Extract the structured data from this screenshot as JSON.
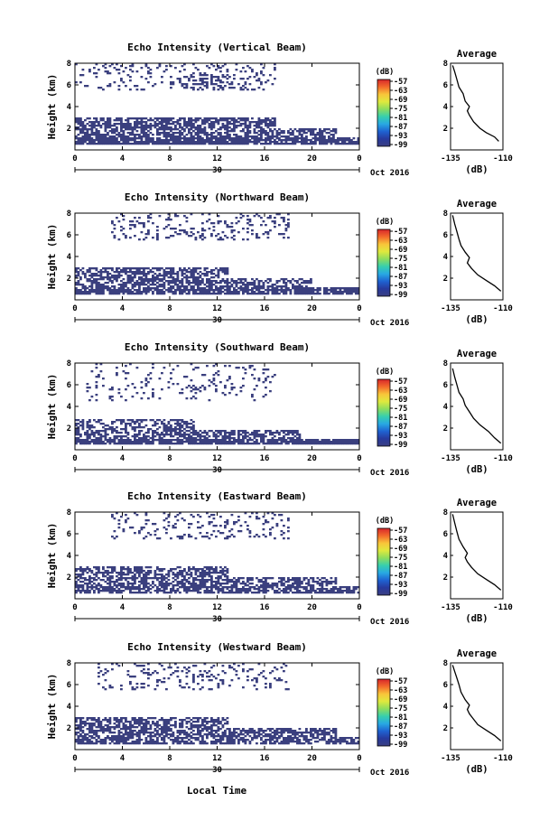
{
  "figure": {
    "bottom_xlabel": "Local Time",
    "date_label": "Oct 2016",
    "day_label": "30",
    "colorbar_unit": "(dB)",
    "colorbar_ticks": [
      "-57",
      "-63",
      "-69",
      "-75",
      "-81",
      "-87",
      "-93",
      "-99"
    ],
    "colorbar_colors": [
      "#d7262b",
      "#f36b2b",
      "#f8c53a",
      "#dfe93e",
      "#8ddd5e",
      "#36cfae",
      "#28a8e3",
      "#1f62d1",
      "#273a9d",
      "#3b3f82"
    ],
    "echo_color": "#3a3f7e",
    "avg_title": "Average",
    "avg_xlabel": "(dB)"
  },
  "chart_data": [
    {
      "type": "heatmap",
      "title": "Echo Intensity (Vertical Beam)",
      "ylabel": "Height (km)",
      "xlim": [
        0,
        24
      ],
      "ylim": [
        0,
        8
      ],
      "xticks": [
        "0",
        "4",
        "8",
        "12",
        "16",
        "20",
        "0"
      ],
      "yticks": [
        "2",
        "4",
        "6",
        "8"
      ],
      "seed": 11,
      "regions": [
        [
          0,
          24,
          0.5,
          1.2,
          0.85
        ],
        [
          0,
          22,
          1.2,
          2.0,
          0.6
        ],
        [
          0,
          17,
          2.0,
          3.0,
          0.7
        ],
        [
          0,
          17,
          5.5,
          8.0,
          0.15
        ],
        [
          8,
          14,
          5.5,
          7.0,
          0.3
        ]
      ],
      "avg": {
        "xlim": [
          -135,
          -110
        ],
        "xticks": [
          "-135",
          "-110"
        ],
        "ylim": [
          0,
          8
        ],
        "yticks": [
          "2",
          "4",
          "6",
          "8"
        ],
        "x": [
          -112,
          -114,
          -118,
          -121,
          -124,
          -126,
          -127,
          -126,
          -128,
          -129,
          -131,
          -132,
          -133,
          -134
        ],
        "y": [
          0.8,
          1.2,
          1.6,
          2.0,
          2.6,
          3.2,
          3.6,
          4.0,
          4.5,
          5.2,
          5.8,
          6.5,
          7.2,
          7.8
        ]
      }
    },
    {
      "type": "heatmap",
      "title": "Echo Intensity (Northward Beam)",
      "ylabel": "Height (km)",
      "xlim": [
        0,
        24
      ],
      "ylim": [
        0,
        8
      ],
      "xticks": [
        "0",
        "4",
        "8",
        "12",
        "16",
        "20",
        "0"
      ],
      "yticks": [
        "2",
        "4",
        "6",
        "8"
      ],
      "seed": 23,
      "regions": [
        [
          0,
          24,
          0.5,
          1.1,
          0.8
        ],
        [
          0,
          20,
          1.1,
          2.0,
          0.6
        ],
        [
          0,
          13,
          2.0,
          3.0,
          0.6
        ],
        [
          3,
          18,
          5.5,
          8.0,
          0.15
        ]
      ],
      "avg": {
        "xlim": [
          -135,
          -110
        ],
        "xticks": [
          "-135",
          "-110"
        ],
        "ylim": [
          0,
          8
        ],
        "yticks": [
          "2",
          "4",
          "6",
          "8"
        ],
        "x": [
          -111,
          -114,
          -118,
          -122,
          -125,
          -127,
          -126,
          -128,
          -130,
          -131,
          -132,
          -133,
          -134
        ],
        "y": [
          0.8,
          1.3,
          1.8,
          2.3,
          2.9,
          3.4,
          3.9,
          4.4,
          5.0,
          5.6,
          6.3,
          7.0,
          7.8
        ]
      }
    },
    {
      "type": "heatmap",
      "title": "Echo Intensity (Southward Beam)",
      "ylabel": "Height (km)",
      "xlim": [
        0,
        24
      ],
      "ylim": [
        0,
        8
      ],
      "xticks": [
        "0",
        "4",
        "8",
        "12",
        "16",
        "20",
        "0"
      ],
      "yticks": [
        "2",
        "4",
        "6",
        "8"
      ],
      "seed": 37,
      "regions": [
        [
          0,
          24,
          0.5,
          1.0,
          0.9
        ],
        [
          0,
          19,
          1.0,
          1.8,
          0.6
        ],
        [
          0,
          10,
          1.8,
          2.8,
          0.5
        ],
        [
          1,
          17,
          4.5,
          8.0,
          0.1
        ]
      ],
      "avg": {
        "xlim": [
          -135,
          -110
        ],
        "xticks": [
          "-135",
          "-110"
        ],
        "ylim": [
          0,
          8
        ],
        "yticks": [
          "2",
          "4",
          "6",
          "8"
        ],
        "x": [
          -111,
          -114,
          -117,
          -121,
          -124,
          -126,
          -128,
          -129,
          -131,
          -132,
          -133,
          -134
        ],
        "y": [
          0.6,
          1.1,
          1.7,
          2.3,
          2.9,
          3.5,
          4.1,
          4.7,
          5.3,
          6.0,
          6.7,
          7.5
        ]
      }
    },
    {
      "type": "heatmap",
      "title": "Echo Intensity (Eastward Beam)",
      "ylabel": "Height (km)",
      "xlim": [
        0,
        24
      ],
      "ylim": [
        0,
        8
      ],
      "xticks": [
        "0",
        "4",
        "8",
        "12",
        "16",
        "20",
        "0"
      ],
      "yticks": [
        "2",
        "4",
        "6",
        "8"
      ],
      "seed": 53,
      "regions": [
        [
          0,
          24,
          0.5,
          1.1,
          0.7
        ],
        [
          0,
          22,
          1.1,
          2.0,
          0.6
        ],
        [
          0,
          13,
          2.0,
          3.0,
          0.6
        ],
        [
          3,
          18,
          5.5,
          8.0,
          0.15
        ]
      ],
      "avg": {
        "xlim": [
          -135,
          -110
        ],
        "xticks": [
          "-135",
          "-110"
        ],
        "ylim": [
          0,
          8
        ],
        "yticks": [
          "2",
          "4",
          "6",
          "8"
        ],
        "x": [
          -111,
          -114,
          -118,
          -122,
          -125,
          -127,
          -128,
          -127,
          -129,
          -131,
          -132,
          -133,
          -134
        ],
        "y": [
          0.8,
          1.3,
          1.8,
          2.3,
          2.9,
          3.4,
          3.8,
          4.2,
          4.8,
          5.5,
          6.2,
          7.0,
          7.8
        ]
      }
    },
    {
      "type": "heatmap",
      "title": "Echo Intensity (Westward Beam)",
      "ylabel": "Height (km)",
      "xlim": [
        0,
        24
      ],
      "ylim": [
        0,
        8
      ],
      "xticks": [
        "0",
        "4",
        "8",
        "12",
        "16",
        "20",
        "0"
      ],
      "yticks": [
        "2",
        "4",
        "6",
        "8"
      ],
      "seed": 71,
      "regions": [
        [
          0,
          24,
          0.5,
          1.1,
          0.7
        ],
        [
          0,
          22,
          1.1,
          2.0,
          0.6
        ],
        [
          0,
          13,
          2.0,
          3.0,
          0.6
        ],
        [
          2,
          18,
          5.5,
          8.0,
          0.15
        ]
      ],
      "avg": {
        "xlim": [
          -135,
          -110
        ],
        "xticks": [
          "-135",
          "-110"
        ],
        "ylim": [
          0,
          8
        ],
        "yticks": [
          "2",
          "4",
          "6",
          "8"
        ],
        "x": [
          -111,
          -114,
          -118,
          -122,
          -124,
          -126,
          -127,
          -126,
          -128,
          -130,
          -131,
          -132,
          -133,
          -134
        ],
        "y": [
          0.8,
          1.3,
          1.8,
          2.3,
          2.8,
          3.3,
          3.7,
          4.1,
          4.6,
          5.3,
          6.0,
          6.6,
          7.2,
          7.8
        ]
      }
    }
  ]
}
